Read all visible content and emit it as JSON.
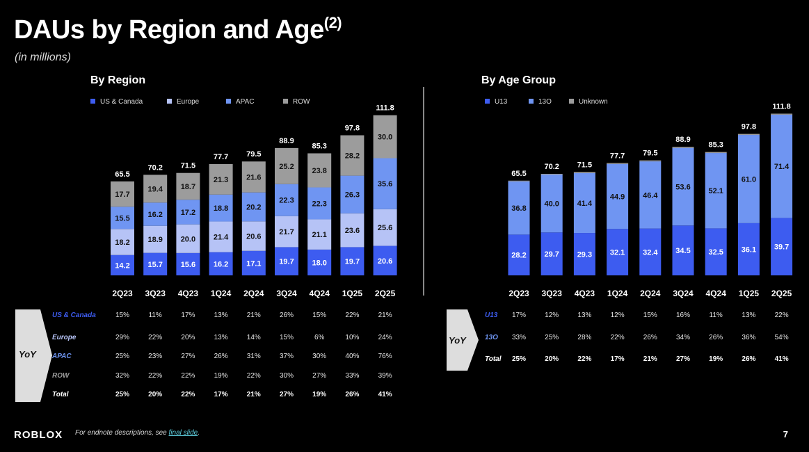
{
  "title": "DAUs by Region and Age",
  "title_sup": "(2)",
  "subtitle": "(in millions)",
  "colors": {
    "us_canada": "#3d5cf0",
    "europe": "#b6c3f6",
    "apac": "#6f95f2",
    "row": "#9c9c9c",
    "u13": "#3d5cf0",
    "13o": "#6f95f2",
    "unknown": "#9c9c9c"
  },
  "chart_data": [
    {
      "type": "bar",
      "stacked": true,
      "title": "By Region",
      "categories": [
        "2Q23",
        "3Q23",
        "4Q23",
        "1Q24",
        "2Q24",
        "3Q24",
        "4Q24",
        "1Q25",
        "2Q25"
      ],
      "totals": [
        65.5,
        70.2,
        71.5,
        77.7,
        79.5,
        88.9,
        85.3,
        97.8,
        111.8
      ],
      "legend_position": "top-left",
      "series": [
        {
          "name": "US & Canada",
          "color": "#3d5cf0",
          "values": [
            14.2,
            15.7,
            15.6,
            16.2,
            17.1,
            19.7,
            18.0,
            19.7,
            20.6
          ]
        },
        {
          "name": "Europe",
          "color": "#b6c3f6",
          "values": [
            18.2,
            18.9,
            20.0,
            21.4,
            20.6,
            21.7,
            21.1,
            23.6,
            25.6
          ]
        },
        {
          "name": "APAC",
          "color": "#6f95f2",
          "values": [
            15.5,
            16.2,
            17.2,
            18.8,
            20.2,
            22.3,
            22.3,
            26.3,
            35.6
          ]
        },
        {
          "name": "ROW",
          "color": "#9c9c9c",
          "values": [
            17.7,
            19.4,
            18.7,
            21.3,
            21.6,
            25.2,
            23.8,
            28.2,
            30.0
          ]
        }
      ]
    },
    {
      "type": "bar",
      "stacked": true,
      "title": "By Age Group",
      "categories": [
        "2Q23",
        "3Q23",
        "4Q23",
        "1Q24",
        "2Q24",
        "3Q24",
        "4Q24",
        "1Q25",
        "2Q25"
      ],
      "totals": [
        65.5,
        70.2,
        71.5,
        77.7,
        79.5,
        88.9,
        85.3,
        97.8,
        111.8
      ],
      "legend_position": "top-left",
      "series": [
        {
          "name": "U13",
          "color": "#3d5cf0",
          "values": [
            28.2,
            29.7,
            29.3,
            32.1,
            32.4,
            34.5,
            32.5,
            36.1,
            39.7
          ]
        },
        {
          "name": "13O",
          "color": "#6f95f2",
          "values": [
            36.8,
            40.0,
            41.4,
            44.9,
            46.4,
            53.6,
            52.1,
            61.0,
            71.4
          ]
        },
        {
          "name": "Unknown",
          "color": "#9c9c9c",
          "values": [
            0.5,
            0.5,
            0.8,
            0.7,
            0.7,
            0.8,
            0.7,
            0.7,
            0.7
          ],
          "labeled": false
        }
      ]
    }
  ],
  "yoy_label": "YoY",
  "region_yoy": [
    {
      "label": "US & Canada",
      "color": "#3d5cf0",
      "values": [
        "15%",
        "11%",
        "17%",
        "13%",
        "21%",
        "26%",
        "15%",
        "22%",
        "21%"
      ]
    },
    {
      "label": "Europe",
      "color": "#b6c3f6",
      "values": [
        "29%",
        "22%",
        "20%",
        "13%",
        "14%",
        "15%",
        "6%",
        "10%",
        "24%"
      ]
    },
    {
      "label": "APAC",
      "color": "#6f95f2",
      "values": [
        "25%",
        "23%",
        "27%",
        "26%",
        "31%",
        "37%",
        "30%",
        "40%",
        "76%"
      ]
    },
    {
      "label": "ROW",
      "color": "#9c9c9c",
      "values": [
        "32%",
        "22%",
        "22%",
        "19%",
        "22%",
        "30%",
        "27%",
        "33%",
        "39%"
      ]
    },
    {
      "label": "Total",
      "color": "#ffffff",
      "total": true,
      "values": [
        "25%",
        "20%",
        "22%",
        "17%",
        "21%",
        "27%",
        "19%",
        "26%",
        "41%"
      ]
    }
  ],
  "age_yoy": [
    {
      "label": "U13",
      "color": "#3d5cf0",
      "values": [
        "17%",
        "12%",
        "13%",
        "12%",
        "15%",
        "16%",
        "11%",
        "13%",
        "22%"
      ]
    },
    {
      "label": "13O",
      "color": "#6f95f2",
      "values": [
        "33%",
        "25%",
        "28%",
        "22%",
        "26%",
        "34%",
        "26%",
        "36%",
        "54%"
      ]
    },
    {
      "label": "Total",
      "color": "#ffffff",
      "total": true,
      "values": [
        "25%",
        "20%",
        "22%",
        "17%",
        "21%",
        "27%",
        "19%",
        "26%",
        "41%"
      ]
    }
  ],
  "footer": {
    "logo": "ROBLOX",
    "note_prefix": "For endnote descriptions, see ",
    "note_link": "final slide",
    "note_suffix": ".",
    "page": "7"
  }
}
